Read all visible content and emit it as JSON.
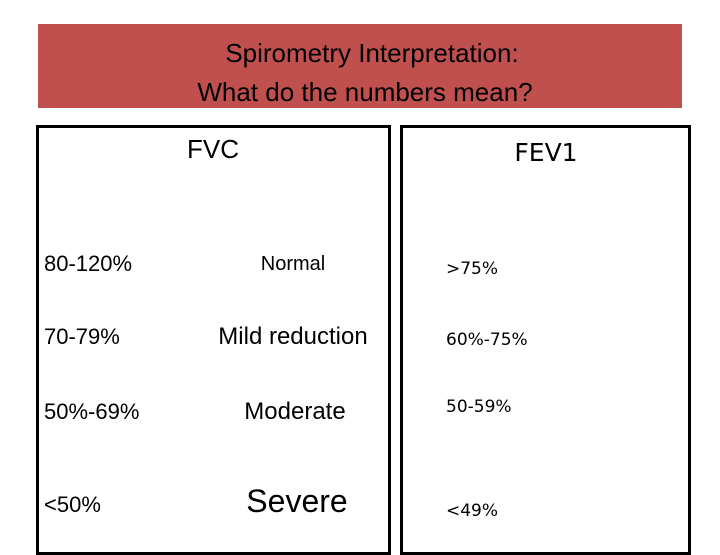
{
  "header": {
    "title_lines": [
      "Spirometry Interpretation:",
      "What do the numbers mean?"
    ]
  },
  "table": {
    "columns": [
      "FVC",
      "FEV1"
    ],
    "rows": [
      [
        "80-120%",
        "Normal",
        ">75%"
      ],
      [
        "70-79%",
        "Mild reduction",
        "60%-75%"
      ],
      [
        "50%-69%",
        "Moderate",
        "50-59%"
      ],
      [
        "<50%",
        "Severe",
        "<49%"
      ]
    ]
  }
}
